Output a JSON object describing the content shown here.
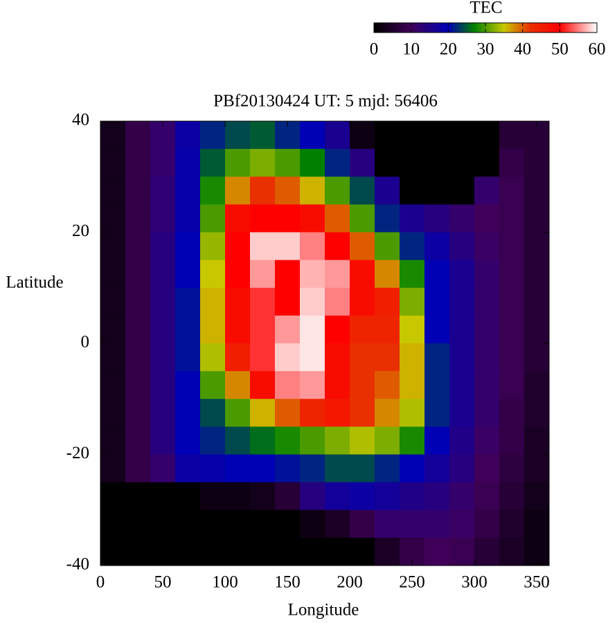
{
  "chart_data": {
    "type": "heatmap",
    "title": "PBf20130424  UT: 5  mjd: 56406",
    "x_label": "Longitude",
    "y_label": "Latitude",
    "colorbar_label": "TEC",
    "x": [
      10,
      30,
      50,
      70,
      90,
      110,
      130,
      150,
      170,
      190,
      210,
      230,
      250,
      270,
      290,
      310,
      330,
      350
    ],
    "y": [
      37.5,
      32.5,
      27.5,
      22.5,
      17.5,
      12.5,
      7.5,
      2.5,
      -2.5,
      -7.5,
      -12.5,
      -17.5,
      -22.5,
      -27.5,
      -32.5,
      -37.5
    ],
    "z": [
      [
        3,
        8,
        12,
        18,
        22,
        24,
        25,
        22,
        20,
        16,
        2,
        0,
        0,
        0,
        0,
        0,
        6,
        6
      ],
      [
        3,
        8,
        12,
        19,
        25,
        30,
        32,
        30,
        27,
        22,
        14,
        0,
        0,
        0,
        0,
        0,
        8,
        6
      ],
      [
        3,
        8,
        13,
        19,
        28,
        38,
        42,
        40,
        36,
        30,
        24,
        16,
        0,
        0,
        0,
        12,
        9,
        6
      ],
      [
        3,
        8,
        13,
        19,
        30,
        48,
        50,
        50,
        48,
        40,
        30,
        22,
        16,
        14,
        12,
        10,
        9,
        6
      ],
      [
        3,
        8,
        14,
        20,
        33,
        50,
        58,
        58,
        55,
        50,
        40,
        30,
        22,
        18,
        14,
        11,
        9,
        6
      ],
      [
        3,
        8,
        14,
        20,
        35,
        50,
        56,
        50,
        57,
        56,
        48,
        38,
        28,
        20,
        16,
        12,
        9,
        6
      ],
      [
        3,
        8,
        14,
        21,
        36,
        48,
        52,
        50,
        58,
        55,
        48,
        45,
        32,
        20,
        16,
        12,
        9,
        6
      ],
      [
        3,
        8,
        14,
        21,
        36,
        48,
        52,
        56,
        59,
        50,
        44,
        44,
        35,
        20,
        16,
        12,
        9,
        6
      ],
      [
        3,
        8,
        14,
        21,
        34,
        45,
        52,
        58,
        59,
        48,
        42,
        42,
        36,
        22,
        16,
        12,
        9,
        6
      ],
      [
        3,
        8,
        14,
        20,
        30,
        38,
        48,
        55,
        56,
        48,
        42,
        40,
        36,
        22,
        16,
        12,
        9,
        5
      ],
      [
        3,
        8,
        14,
        20,
        24,
        30,
        36,
        40,
        44,
        46,
        42,
        38,
        34,
        22,
        16,
        12,
        8,
        5
      ],
      [
        3,
        8,
        14,
        20,
        22,
        24,
        26,
        28,
        30,
        32,
        34,
        32,
        28,
        20,
        15,
        11,
        8,
        4
      ],
      [
        3,
        8,
        12,
        18,
        19,
        20,
        20,
        21,
        22,
        24,
        24,
        22,
        20,
        17,
        14,
        10,
        7,
        4
      ],
      [
        0,
        0,
        0,
        0,
        2,
        2,
        3,
        6,
        14,
        17,
        18,
        17,
        15,
        14,
        12,
        9,
        6,
        3
      ],
      [
        0,
        0,
        0,
        0,
        0,
        0,
        0,
        0,
        2,
        4,
        8,
        12,
        12,
        12,
        11,
        8,
        5,
        2
      ],
      [
        0,
        0,
        0,
        0,
        0,
        0,
        0,
        0,
        0,
        0,
        0,
        4,
        8,
        10,
        9,
        6,
        4,
        2
      ]
    ],
    "xlim": [
      0,
      360
    ],
    "ylim": [
      -40,
      40
    ],
    "xticks": [
      0,
      50,
      100,
      150,
      200,
      250,
      300,
      350
    ],
    "yticks": [
      -40,
      -20,
      0,
      20,
      40
    ],
    "clim": [
      0,
      60
    ],
    "cticks": [
      0,
      10,
      20,
      30,
      40,
      50,
      60
    ],
    "colorscale": [
      [
        0,
        "#000000"
      ],
      [
        10,
        "#40005a"
      ],
      [
        20,
        "#0000b4"
      ],
      [
        27,
        "#008000"
      ],
      [
        35,
        "#c8c800"
      ],
      [
        42,
        "#e83000"
      ],
      [
        50,
        "#ff0000"
      ],
      [
        60,
        "#ffffff"
      ]
    ]
  }
}
